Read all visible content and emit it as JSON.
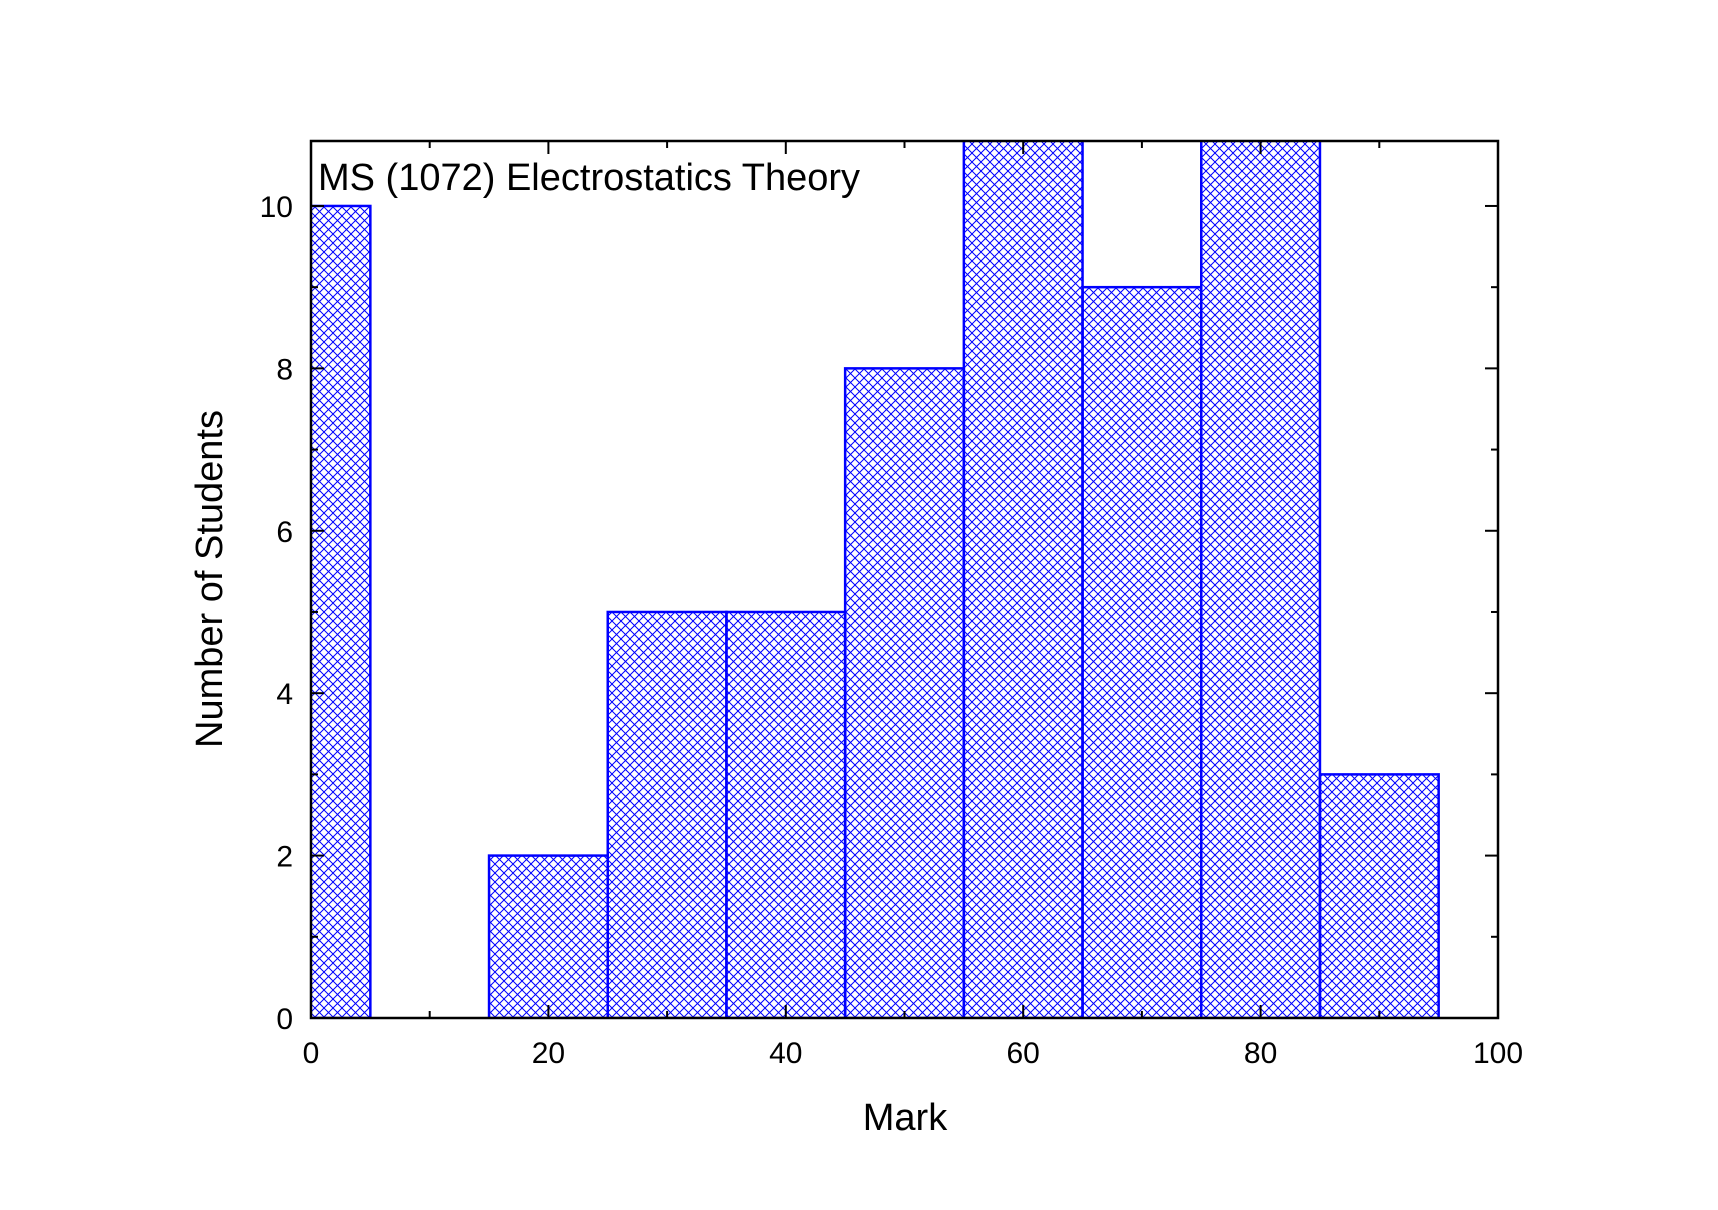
{
  "chart_data": {
    "type": "bar",
    "title": "MS (1072) Electrostatics Theory",
    "xlabel": "Mark",
    "ylabel": "Number of Students",
    "xlim": [
      0,
      100
    ],
    "ylim": [
      0,
      10.8
    ],
    "x_ticks": [
      0,
      20,
      40,
      60,
      80,
      100
    ],
    "y_ticks": [
      0,
      2,
      4,
      6,
      8,
      10
    ],
    "bin_width": 10,
    "bins": [
      {
        "start": -5,
        "end": 5,
        "value": 10
      },
      {
        "start": 5,
        "end": 15,
        "value": 0
      },
      {
        "start": 15,
        "end": 25,
        "value": 2
      },
      {
        "start": 25,
        "end": 35,
        "value": 5
      },
      {
        "start": 35,
        "end": 45,
        "value": 5
      },
      {
        "start": 45,
        "end": 55,
        "value": 8
      },
      {
        "start": 55,
        "end": 65,
        "value": 11
      },
      {
        "start": 65,
        "end": 75,
        "value": 9
      },
      {
        "start": 75,
        "end": 85,
        "value": 11
      },
      {
        "start": 85,
        "end": 95,
        "value": 3
      }
    ],
    "fill_pattern": "crosshatch",
    "bar_color": "#0000ff",
    "grid": false,
    "legend": "none"
  }
}
